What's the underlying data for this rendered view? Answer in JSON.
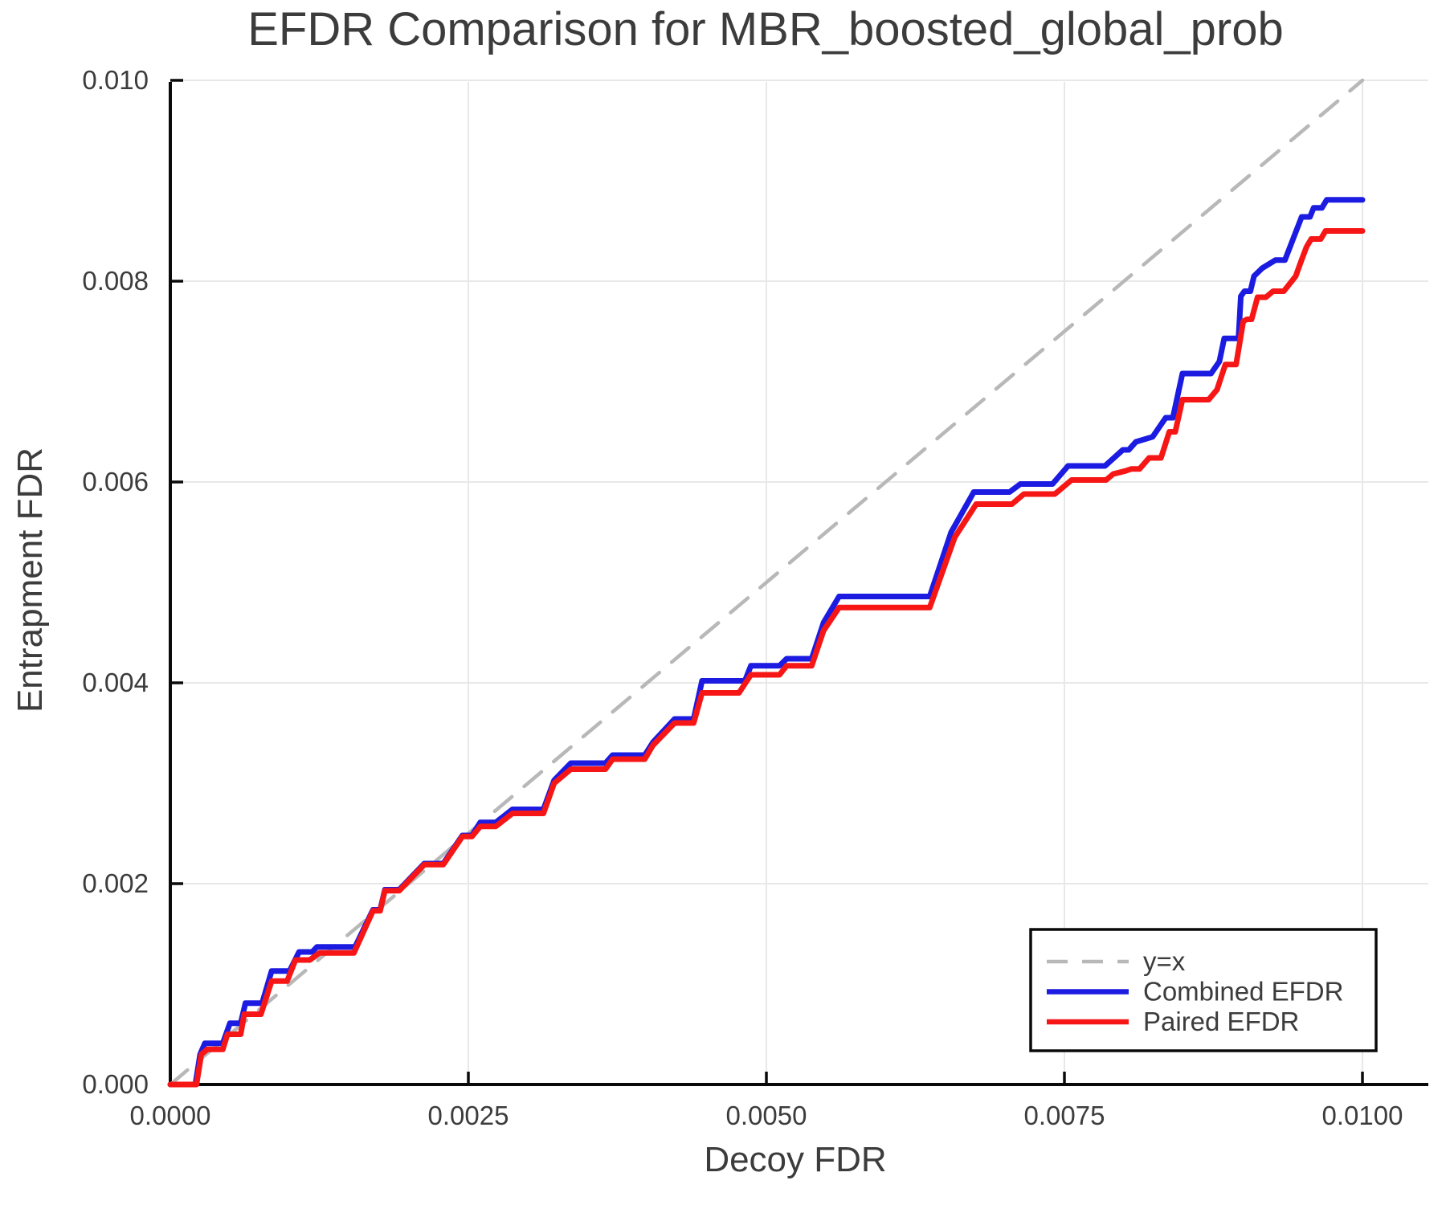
{
  "title": "EFDR Comparison for MBR_boosted_global_prob",
  "x_axis": {
    "label": "Decoy FDR",
    "tick_labels": [
      "0.0000",
      "0.0025",
      "0.0050",
      "0.0075",
      "0.0100"
    ],
    "tick_values": [
      0,
      0.0025,
      0.005,
      0.0075,
      0.01
    ]
  },
  "y_axis": {
    "label": "Entrapment FDR",
    "tick_labels": [
      "0.000",
      "0.002",
      "0.004",
      "0.006",
      "0.008",
      "0.010"
    ],
    "tick_values": [
      0,
      0.002,
      0.004,
      0.006,
      0.008,
      0.01
    ]
  },
  "legend": {
    "items": [
      {
        "label": "y=x",
        "color": "#b8b8b8",
        "dashed": true
      },
      {
        "label": "Combined EFDR",
        "color": "#1b1be1",
        "dashed": false
      },
      {
        "label": "Paired EFDR",
        "color": "#f71616",
        "dashed": false
      }
    ]
  },
  "colors": {
    "text": "#3c3c3c",
    "axis": "#0a0a0a",
    "grid": "#e8e8e8",
    "identity_line": "#b8b8b8",
    "combined": "#1b1be1",
    "paired": "#f71616"
  },
  "chart_data": {
    "type": "line",
    "title": "EFDR Comparison for MBR_boosted_global_prob",
    "xlabel": "Decoy FDR",
    "ylabel": "Entrapment FDR",
    "xlim": [
      0,
      0.01056
    ],
    "ylim": [
      0,
      0.009984
    ],
    "grid": true,
    "legend_position": "lower right",
    "x_ticks": [
      0,
      0.0025,
      0.005,
      0.0075,
      0.01
    ],
    "y_ticks": [
      0,
      0.002,
      0.004,
      0.006,
      0.008,
      0.01
    ],
    "series": [
      {
        "name": "y=x",
        "style": "dashed",
        "color": "#b8b8b8",
        "x": [
          0,
          0.01
        ],
        "y": [
          0,
          0.01
        ]
      },
      {
        "name": "Combined EFDR",
        "style": "solid",
        "color": "#1b1be1",
        "x": [
          0,
          0.00021,
          0.00025,
          0.00029,
          0.00044,
          0.0005,
          0.00059,
          0.00063,
          0.00077,
          0.00085,
          0.001,
          0.00108,
          0.00119,
          0.00123,
          0.00155,
          0.0017,
          0.00176,
          0.0018,
          0.00192,
          0.00213,
          0.00229,
          0.00245,
          0.00253,
          0.0026,
          0.00273,
          0.00287,
          0.00313,
          0.00322,
          0.00336,
          0.00365,
          0.00371,
          0.00398,
          0.00405,
          0.00423,
          0.00439,
          0.00446,
          0.00482,
          0.00487,
          0.00511,
          0.00517,
          0.00538,
          0.00548,
          0.00561,
          0.00637,
          0.00655,
          0.00674,
          0.00704,
          0.00713,
          0.0074,
          0.00753,
          0.00784,
          0.00799,
          0.00804,
          0.0081,
          0.00824,
          0.00835,
          0.00841,
          0.00849,
          0.00873,
          0.0088,
          0.00884,
          0.00896,
          0.00898,
          0.00901,
          0.00906,
          0.00909,
          0.00916,
          0.00927,
          0.00935,
          0.00949,
          0.00956,
          0.00959,
          0.00966,
          0.0097,
          0.01
        ],
        "y": [
          0,
          0,
          0.0003,
          0.00041,
          0.00041,
          0.00061,
          0.00061,
          0.00081,
          0.00081,
          0.00113,
          0.00113,
          0.00132,
          0.00132,
          0.00137,
          0.00137,
          0.00174,
          0.00174,
          0.00194,
          0.00194,
          0.0022,
          0.0022,
          0.00248,
          0.00248,
          0.00261,
          0.00261,
          0.00274,
          0.00274,
          0.00303,
          0.0032,
          0.0032,
          0.00328,
          0.00328,
          0.00341,
          0.00364,
          0.00364,
          0.00402,
          0.00402,
          0.00417,
          0.00417,
          0.00424,
          0.00424,
          0.0046,
          0.00486,
          0.00486,
          0.0055,
          0.0059,
          0.0059,
          0.00598,
          0.00598,
          0.00616,
          0.00616,
          0.00632,
          0.00632,
          0.0064,
          0.00645,
          0.00664,
          0.00664,
          0.00708,
          0.00708,
          0.0072,
          0.00743,
          0.00743,
          0.00785,
          0.0079,
          0.0079,
          0.00805,
          0.00813,
          0.00821,
          0.00821,
          0.00864,
          0.00864,
          0.00873,
          0.00873,
          0.00881,
          0.00881
        ]
      },
      {
        "name": "Paired EFDR",
        "style": "solid",
        "color": "#f71616",
        "x": [
          0,
          0.00022,
          0.00026,
          0.00031,
          0.00044,
          0.00048,
          0.00059,
          0.00062,
          0.00076,
          0.00085,
          0.00098,
          0.00105,
          0.00117,
          0.00125,
          0.00154,
          0.0017,
          0.00176,
          0.0018,
          0.00192,
          0.00213,
          0.00229,
          0.00245,
          0.00253,
          0.0026,
          0.00273,
          0.00287,
          0.00313,
          0.00322,
          0.00336,
          0.00365,
          0.00371,
          0.00398,
          0.00405,
          0.00423,
          0.00439,
          0.00446,
          0.00477,
          0.00487,
          0.00511,
          0.00517,
          0.00538,
          0.00548,
          0.00561,
          0.00637,
          0.00658,
          0.00676,
          0.00706,
          0.00716,
          0.00742,
          0.00756,
          0.00785,
          0.00791,
          0.00801,
          0.00806,
          0.00813,
          0.00821,
          0.00831,
          0.00838,
          0.00843,
          0.00849,
          0.00871,
          0.00878,
          0.00885,
          0.00894,
          0.009,
          0.00903,
          0.00907,
          0.00912,
          0.00919,
          0.00925,
          0.00934,
          0.00944,
          0.00948,
          0.00953,
          0.00957,
          0.00965,
          0.00969,
          0.01
        ],
        "y": [
          0,
          0,
          0.0003,
          0.00035,
          0.00035,
          0.0005,
          0.0005,
          0.0007,
          0.0007,
          0.00103,
          0.00103,
          0.00124,
          0.00124,
          0.00131,
          0.00131,
          0.00173,
          0.00173,
          0.00193,
          0.00193,
          0.00219,
          0.00219,
          0.00247,
          0.00247,
          0.00257,
          0.00257,
          0.0027,
          0.0027,
          0.003,
          0.00314,
          0.00314,
          0.00324,
          0.00324,
          0.00338,
          0.0036,
          0.0036,
          0.0039,
          0.0039,
          0.00408,
          0.00408,
          0.00417,
          0.00417,
          0.00452,
          0.00475,
          0.00475,
          0.00545,
          0.00578,
          0.00578,
          0.00588,
          0.00588,
          0.00602,
          0.00602,
          0.00608,
          0.00611,
          0.00613,
          0.00613,
          0.00624,
          0.00624,
          0.0065,
          0.0065,
          0.00682,
          0.00682,
          0.00692,
          0.00717,
          0.00717,
          0.0076,
          0.00762,
          0.00762,
          0.00784,
          0.00784,
          0.0079,
          0.0079,
          0.00805,
          0.00818,
          0.00834,
          0.00842,
          0.00842,
          0.0085,
          0.0085
        ]
      }
    ]
  }
}
